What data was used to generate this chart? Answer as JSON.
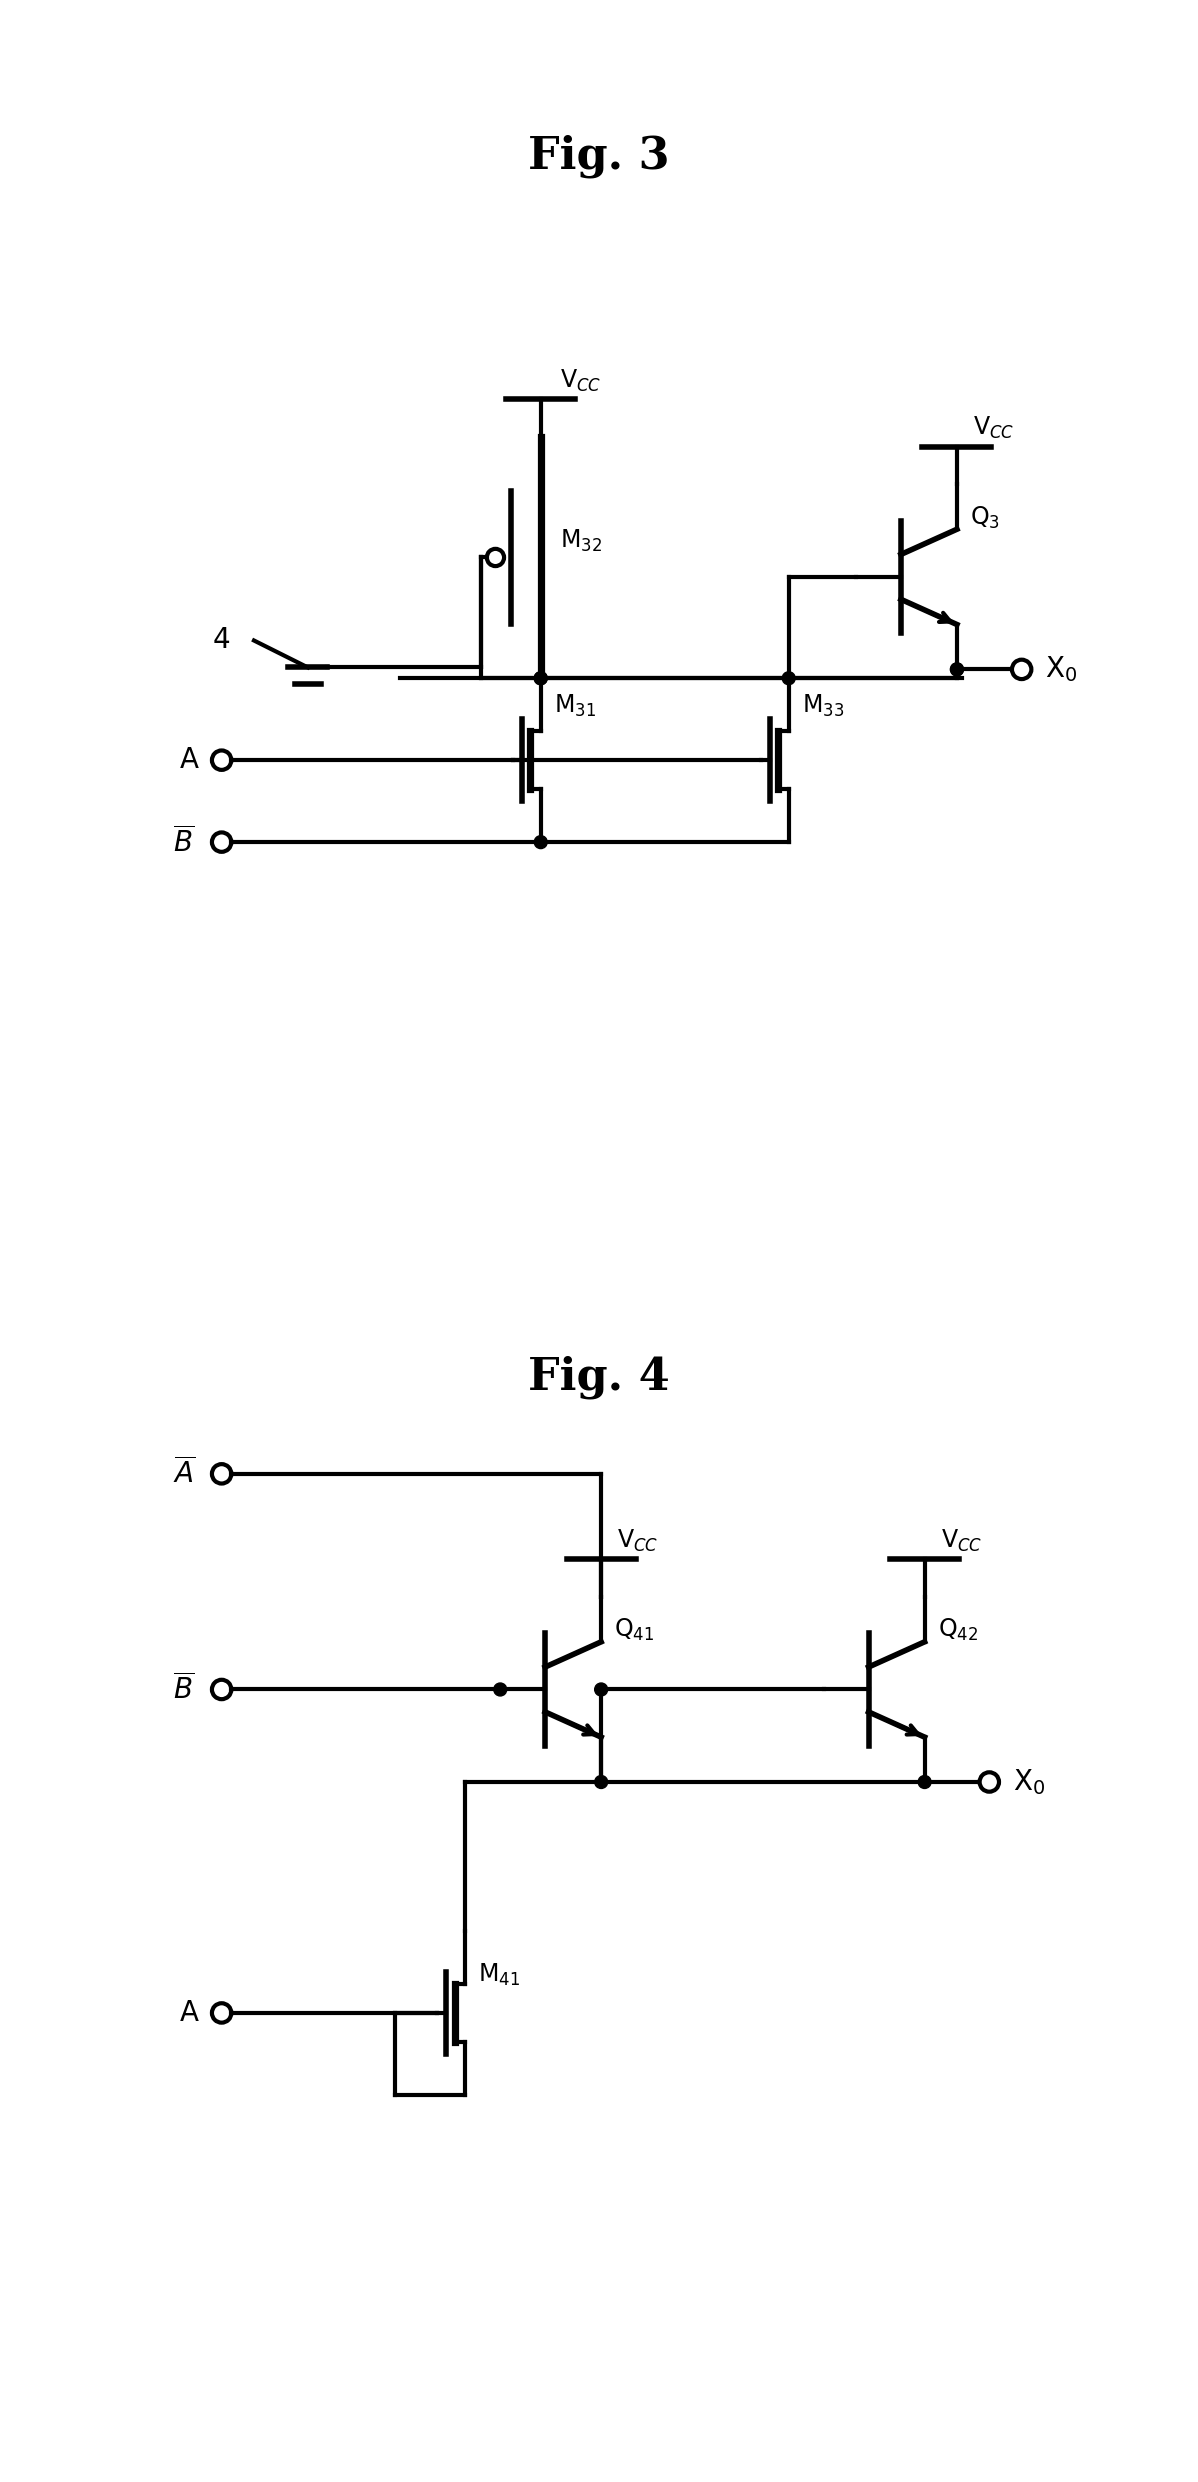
{
  "fig3_title": "Fig. 3",
  "fig4_title": "Fig. 4",
  "bg_color": "#ffffff",
  "line_color": "#000000",
  "lw": 3.0,
  "lw_thick": 4.0,
  "fs_title": 32,
  "fs_label": 20,
  "fs_sub": 17,
  "dot_r": 0.06,
  "term_r": 0.09
}
